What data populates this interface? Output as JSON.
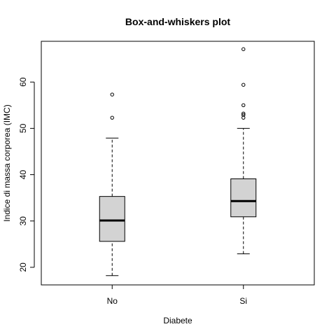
{
  "chart_data": {
    "type": "box",
    "title": "Box-and-whiskers plot",
    "xlabel": "Diabete",
    "ylabel": "Indice di massa corporea (IMC)",
    "ylim": [
      16.2,
      68.8
    ],
    "yticks": [
      20,
      30,
      40,
      50,
      60
    ],
    "categories": [
      "No",
      "Si"
    ],
    "boxes": [
      {
        "category": "No",
        "whisker_low": 18.2,
        "q1": 25.6,
        "median": 30.1,
        "q3": 35.3,
        "whisker_high": 47.9,
        "outliers": [
          52.3,
          57.3
        ]
      },
      {
        "category": "Si",
        "whisker_low": 22.9,
        "q1": 30.9,
        "median": 34.3,
        "q3": 39.1,
        "whisker_high": 50.0,
        "outliers": [
          52.3,
          52.9,
          53.2,
          55.0,
          59.4,
          67.1
        ]
      }
    ],
    "box_fill": "#d3d3d3",
    "line_color": "#000000",
    "grid": false,
    "legend": "none"
  }
}
